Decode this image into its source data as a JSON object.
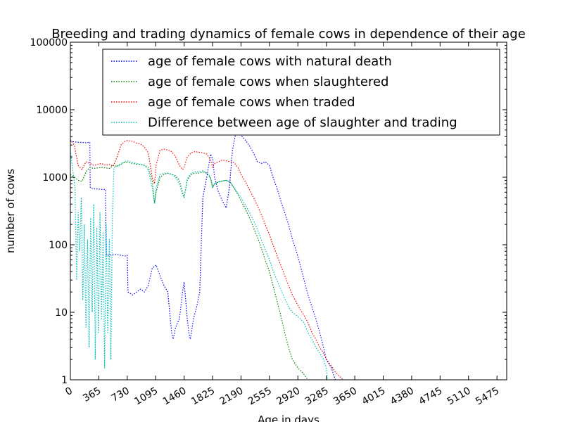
{
  "chart_data": {
    "type": "line",
    "title": "Breeding and trading dynamics of female cows in dependence of their age",
    "xlabel": "Age in days",
    "ylabel": "number of cows",
    "xlim": [
      0,
      5600
    ],
    "ylim": [
      1,
      100000
    ],
    "y_scale": "log",
    "x_ticks": [
      0,
      365,
      730,
      1095,
      1460,
      1825,
      2190,
      2555,
      2920,
      3285,
      3650,
      4015,
      4380,
      4745,
      5110,
      5475
    ],
    "x_tick_labels": [
      "0",
      "365",
      "730",
      "1095",
      "1460",
      "1825",
      "2190",
      "2555",
      "2920",
      "3285",
      "3650",
      "4015",
      "4380",
      "4745",
      "5110",
      "5475"
    ],
    "y_ticks": [
      1,
      10,
      100,
      1000,
      10000,
      100000
    ],
    "y_tick_labels": [
      "1",
      "10",
      "100",
      "1000",
      "10000",
      "100000"
    ],
    "x_tick_rotation": 30,
    "grid": false,
    "line_style": "dotted",
    "legend_placement": "top-right",
    "series": [
      {
        "name": "age of female cows with natural death",
        "color": "#0000ff",
        "points": [
          [
            0,
            3400
          ],
          [
            100,
            3300
          ],
          [
            200,
            3250
          ],
          [
            250,
            3300
          ],
          [
            255,
            700
          ],
          [
            300,
            680
          ],
          [
            400,
            660
          ],
          [
            450,
            660
          ],
          [
            460,
            70
          ],
          [
            600,
            72
          ],
          [
            700,
            68
          ],
          [
            730,
            70
          ],
          [
            740,
            20
          ],
          [
            800,
            18
          ],
          [
            900,
            22
          ],
          [
            950,
            20
          ],
          [
            1000,
            25
          ],
          [
            1050,
            45
          ],
          [
            1100,
            50
          ],
          [
            1150,
            35
          ],
          [
            1200,
            25
          ],
          [
            1250,
            20
          ],
          [
            1300,
            5
          ],
          [
            1320,
            4
          ],
          [
            1350,
            6
          ],
          [
            1400,
            8
          ],
          [
            1440,
            20
          ],
          [
            1460,
            28
          ],
          [
            1480,
            15
          ],
          [
            1500,
            8
          ],
          [
            1520,
            5
          ],
          [
            1540,
            4
          ],
          [
            1580,
            8
          ],
          [
            1620,
            12
          ],
          [
            1660,
            20
          ],
          [
            1700,
            500
          ],
          [
            1750,
            1000
          ],
          [
            1800,
            2200
          ],
          [
            1830,
            1800
          ],
          [
            1850,
            1000
          ],
          [
            1900,
            600
          ],
          [
            1950,
            450
          ],
          [
            2000,
            350
          ],
          [
            2040,
            700
          ],
          [
            2080,
            2500
          ],
          [
            2130,
            5000
          ],
          [
            2190,
            4200
          ],
          [
            2250,
            3500
          ],
          [
            2300,
            2900
          ],
          [
            2350,
            2300
          ],
          [
            2400,
            1700
          ],
          [
            2450,
            1600
          ],
          [
            2500,
            1700
          ],
          [
            2555,
            1500
          ],
          [
            2600,
            1000
          ],
          [
            2650,
            700
          ],
          [
            2700,
            450
          ],
          [
            2750,
            300
          ],
          [
            2800,
            200
          ],
          [
            2850,
            120
          ],
          [
            2900,
            80
          ],
          [
            2950,
            50
          ],
          [
            3000,
            30
          ],
          [
            3050,
            18
          ],
          [
            3100,
            12
          ],
          [
            3150,
            8
          ],
          [
            3200,
            5
          ],
          [
            3250,
            3
          ],
          [
            3285,
            2
          ],
          [
            3350,
            1.5
          ],
          [
            3400,
            1
          ]
        ]
      },
      {
        "name": "age of female cows when slaughtered",
        "color": "#008000",
        "points": [
          [
            0,
            1100
          ],
          [
            50,
            1000
          ],
          [
            100,
            900
          ],
          [
            150,
            870
          ],
          [
            200,
            1200
          ],
          [
            250,
            1400
          ],
          [
            300,
            1350
          ],
          [
            400,
            1400
          ],
          [
            500,
            1350
          ],
          [
            550,
            1500
          ],
          [
            600,
            1450
          ],
          [
            650,
            1600
          ],
          [
            700,
            1650
          ],
          [
            730,
            1650
          ],
          [
            800,
            1600
          ],
          [
            850,
            1550
          ],
          [
            900,
            1550
          ],
          [
            950,
            1500
          ],
          [
            1000,
            1400
          ],
          [
            1050,
            900
          ],
          [
            1080,
            420
          ],
          [
            1100,
            600
          ],
          [
            1150,
            1000
          ],
          [
            1200,
            1100
          ],
          [
            1250,
            1150
          ],
          [
            1300,
            1100
          ],
          [
            1350,
            1050
          ],
          [
            1400,
            900
          ],
          [
            1440,
            600
          ],
          [
            1460,
            500
          ],
          [
            1500,
            900
          ],
          [
            1550,
            1100
          ],
          [
            1600,
            1150
          ],
          [
            1650,
            1150
          ],
          [
            1700,
            1200
          ],
          [
            1750,
            1150
          ],
          [
            1800,
            1000
          ],
          [
            1825,
            700
          ],
          [
            1850,
            800
          ],
          [
            1900,
            850
          ],
          [
            1950,
            880
          ],
          [
            2000,
            900
          ],
          [
            2050,
            850
          ],
          [
            2100,
            700
          ],
          [
            2150,
            550
          ],
          [
            2190,
            450
          ],
          [
            2250,
            330
          ],
          [
            2300,
            250
          ],
          [
            2350,
            180
          ],
          [
            2400,
            130
          ],
          [
            2450,
            90
          ],
          [
            2500,
            60
          ],
          [
            2555,
            40
          ],
          [
            2600,
            25
          ],
          [
            2650,
            15
          ],
          [
            2700,
            9
          ],
          [
            2750,
            5
          ],
          [
            2800,
            3
          ],
          [
            2850,
            2
          ],
          [
            2920,
            1.5
          ],
          [
            3000,
            1.2
          ],
          [
            3050,
            1
          ]
        ]
      },
      {
        "name": "age of female cows when traded",
        "color": "#ff0000",
        "points": [
          [
            0,
            3600
          ],
          [
            50,
            3000
          ],
          [
            100,
            1500
          ],
          [
            150,
            1300
          ],
          [
            200,
            1700
          ],
          [
            250,
            1600
          ],
          [
            300,
            1500
          ],
          [
            350,
            1550
          ],
          [
            400,
            1600
          ],
          [
            450,
            1500
          ],
          [
            500,
            1550
          ],
          [
            550,
            1450
          ],
          [
            600,
            2000
          ],
          [
            650,
            3000
          ],
          [
            700,
            3400
          ],
          [
            730,
            3500
          ],
          [
            800,
            3400
          ],
          [
            850,
            3200
          ],
          [
            900,
            3100
          ],
          [
            950,
            2800
          ],
          [
            1000,
            2300
          ],
          [
            1050,
            1000
          ],
          [
            1080,
            800
          ],
          [
            1100,
            1500
          ],
          [
            1150,
            2500
          ],
          [
            1200,
            2600
          ],
          [
            1250,
            2550
          ],
          [
            1300,
            2400
          ],
          [
            1350,
            2000
          ],
          [
            1400,
            1500
          ],
          [
            1440,
            1300
          ],
          [
            1460,
            1400
          ],
          [
            1500,
            2000
          ],
          [
            1550,
            2300
          ],
          [
            1600,
            2400
          ],
          [
            1650,
            2350
          ],
          [
            1700,
            2300
          ],
          [
            1750,
            2200
          ],
          [
            1800,
            1800
          ],
          [
            1825,
            1400
          ],
          [
            1850,
            1600
          ],
          [
            1900,
            1700
          ],
          [
            1950,
            1800
          ],
          [
            2000,
            1750
          ],
          [
            2050,
            1700
          ],
          [
            2100,
            1650
          ],
          [
            2150,
            1400
          ],
          [
            2190,
            1100
          ],
          [
            2250,
            850
          ],
          [
            2300,
            650
          ],
          [
            2350,
            500
          ],
          [
            2400,
            380
          ],
          [
            2450,
            280
          ],
          [
            2500,
            200
          ],
          [
            2555,
            140
          ],
          [
            2600,
            100
          ],
          [
            2650,
            70
          ],
          [
            2700,
            50
          ],
          [
            2750,
            35
          ],
          [
            2800,
            25
          ],
          [
            2850,
            18
          ],
          [
            2900,
            14
          ],
          [
            2950,
            11
          ],
          [
            3000,
            9
          ],
          [
            3050,
            7
          ],
          [
            3100,
            5
          ],
          [
            3150,
            4
          ],
          [
            3200,
            3
          ],
          [
            3250,
            2.5
          ],
          [
            3285,
            2
          ],
          [
            3350,
            1.6
          ],
          [
            3400,
            1.3
          ],
          [
            3500,
            1
          ]
        ]
      },
      {
        "name": "Difference between age of slaughter and trading",
        "color": "#00bfbf",
        "points": [
          [
            0,
            2500
          ],
          [
            30,
            1300
          ],
          [
            60,
            700
          ],
          [
            80,
            30
          ],
          [
            100,
            300
          ],
          [
            120,
            80
          ],
          [
            140,
            500
          ],
          [
            160,
            15
          ],
          [
            180,
            200
          ],
          [
            200,
            6
          ],
          [
            220,
            120
          ],
          [
            240,
            3
          ],
          [
            260,
            250
          ],
          [
            280,
            10
          ],
          [
            300,
            400
          ],
          [
            320,
            2
          ],
          [
            340,
            180
          ],
          [
            360,
            5
          ],
          [
            380,
            300
          ],
          [
            400,
            8
          ],
          [
            420,
            150
          ],
          [
            440,
            1.5
          ],
          [
            460,
            200
          ],
          [
            480,
            5
          ],
          [
            500,
            120
          ],
          [
            520,
            2
          ],
          [
            540,
            300
          ],
          [
            560,
            1400
          ],
          [
            600,
            1450
          ],
          [
            650,
            1550
          ],
          [
            700,
            1700
          ],
          [
            730,
            1750
          ],
          [
            800,
            1650
          ],
          [
            850,
            1600
          ],
          [
            900,
            1550
          ],
          [
            950,
            1500
          ],
          [
            1000,
            1300
          ],
          [
            1050,
            700
          ],
          [
            1080,
            400
          ],
          [
            1100,
            700
          ],
          [
            1150,
            1100
          ],
          [
            1200,
            1150
          ],
          [
            1250,
            1150
          ],
          [
            1300,
            1100
          ],
          [
            1350,
            1000
          ],
          [
            1400,
            800
          ],
          [
            1440,
            550
          ],
          [
            1460,
            500
          ],
          [
            1500,
            950
          ],
          [
            1550,
            1150
          ],
          [
            1600,
            1200
          ],
          [
            1650,
            1200
          ],
          [
            1700,
            1250
          ],
          [
            1750,
            1150
          ],
          [
            1800,
            950
          ],
          [
            1825,
            700
          ],
          [
            1850,
            800
          ],
          [
            1900,
            850
          ],
          [
            1950,
            880
          ],
          [
            2000,
            900
          ],
          [
            2050,
            850
          ],
          [
            2100,
            700
          ],
          [
            2150,
            580
          ],
          [
            2190,
            500
          ],
          [
            2250,
            380
          ],
          [
            2300,
            300
          ],
          [
            2350,
            230
          ],
          [
            2400,
            170
          ],
          [
            2450,
            120
          ],
          [
            2500,
            85
          ],
          [
            2555,
            60
          ],
          [
            2600,
            42
          ],
          [
            2650,
            30
          ],
          [
            2700,
            22
          ],
          [
            2750,
            16
          ],
          [
            2800,
            12
          ],
          [
            2850,
            10
          ],
          [
            2900,
            9
          ],
          [
            2950,
            8
          ],
          [
            3000,
            7
          ],
          [
            3050,
            5
          ],
          [
            3100,
            4
          ],
          [
            3150,
            3
          ],
          [
            3200,
            2.5
          ],
          [
            3250,
            2
          ],
          [
            3285,
            1.5
          ],
          [
            3300,
            1
          ]
        ]
      }
    ]
  }
}
